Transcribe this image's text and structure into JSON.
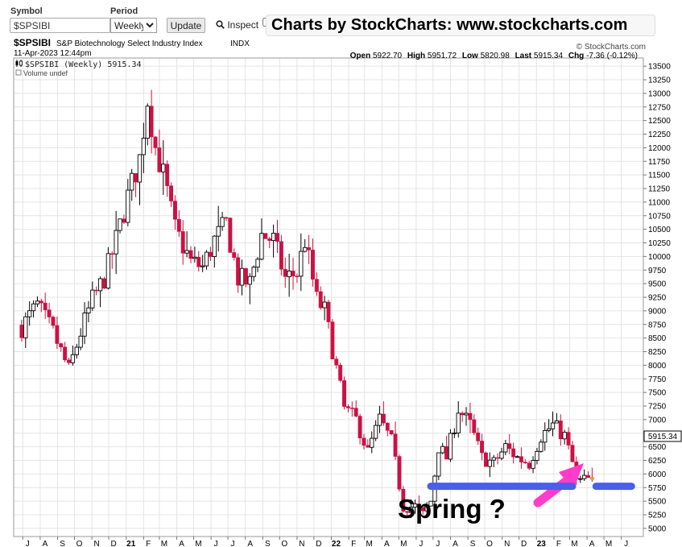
{
  "toolbar": {
    "symbol_label": "Symbol",
    "symbol_value": "$SPSIBI",
    "period_label": "Period",
    "period_value": "Weekly",
    "update_label": "Update",
    "inspect_label": "Inspect",
    "banner": "Charts by StockCharts:  www.stockcharts.com"
  },
  "header": {
    "ticker": "$SPSIBI",
    "name": "S&P Biotechnology Select Industry Index",
    "exchange": "INDX",
    "date": "11-Apr-2023 12:44pm",
    "copyright": "© StockCharts.com",
    "open_label": "Open",
    "open": "5922.70",
    "high_label": "High",
    "high": "5951.72",
    "low_label": "Low",
    "low": "5820.98",
    "last_label": "Last",
    "last": "5915.34",
    "chg_label": "Chg",
    "chg": "-7.36 (-0.12%)",
    "legend_series": "$SPSIBI (Weekly) 5915.34",
    "legend_volume": "Volume undef",
    "last_price_tag": "5915.34"
  },
  "annotations": {
    "text": "Spring ?",
    "colors": {
      "support_line": "#4a5ee8",
      "arrow": "#ff3cc8"
    },
    "support_level": 5775,
    "support_segments": [
      [
        "2022-06-27",
        "2023-03-06"
      ],
      [
        "2023-04-17",
        "2023-06-19"
      ]
    ]
  },
  "chart_data": {
    "type": "candlestick",
    "period": "weekly",
    "y_axis": {
      "side": "right",
      "min": 4850,
      "max": 13650,
      "ticks": [
        5000,
        5250,
        5500,
        5750,
        6000,
        6250,
        6500,
        6750,
        7000,
        7250,
        7500,
        7750,
        8000,
        8250,
        8500,
        8750,
        9000,
        9250,
        9500,
        9750,
        10000,
        10250,
        10500,
        10750,
        11000,
        11250,
        11500,
        11750,
        12000,
        12250,
        12500,
        12750,
        13000,
        13250,
        13500
      ]
    },
    "x_axis": {
      "labels": [
        "J",
        "A",
        "S",
        "O",
        "N",
        "D",
        "21",
        "F",
        "M",
        "A",
        "M",
        "J",
        "J",
        "A",
        "S",
        "O",
        "N",
        "D",
        "22",
        "F",
        "M",
        "A",
        "M",
        "J",
        "J",
        "A",
        "S",
        "O",
        "N",
        "D",
        "23",
        "F",
        "M",
        "A",
        "M",
        "J"
      ]
    },
    "colors": {
      "up": "#000000",
      "down": "#cc1144",
      "grid": "#e4e4e4"
    },
    "grid": true,
    "last_close": 5915.34,
    "price_path": [
      [
        "2020-06-29",
        8700
      ],
      [
        "2020-07-27",
        9100
      ],
      [
        "2020-08-24",
        8600
      ],
      [
        "2020-09-21",
        7900
      ],
      [
        "2020-10-12",
        8600
      ],
      [
        "2020-11-02",
        9200
      ],
      [
        "2020-11-23",
        9600
      ],
      [
        "2020-12-14",
        10300
      ],
      [
        "2021-01-04",
        11100
      ],
      [
        "2021-01-25",
        11800
      ],
      [
        "2021-02-08",
        12900
      ],
      [
        "2021-02-22",
        12000
      ],
      [
        "2021-03-08",
        11500
      ],
      [
        "2021-03-29",
        10500
      ],
      [
        "2021-04-26",
        9900
      ],
      [
        "2021-05-17",
        9800
      ],
      [
        "2021-06-07",
        10300
      ],
      [
        "2021-06-28",
        10600
      ],
      [
        "2021-07-19",
        9600
      ],
      [
        "2021-08-09",
        9500
      ],
      [
        "2021-08-30",
        10400
      ],
      [
        "2021-09-20",
        10300
      ],
      [
        "2021-10-11",
        9600
      ],
      [
        "2021-11-01",
        9700
      ],
      [
        "2021-11-15",
        10300
      ],
      [
        "2021-12-06",
        9200
      ],
      [
        "2021-12-20",
        9000
      ],
      [
        "2022-01-03",
        8300
      ],
      [
        "2022-01-24",
        7200
      ],
      [
        "2022-02-14",
        7000
      ],
      [
        "2022-03-07",
        6400
      ],
      [
        "2022-03-28",
        7000
      ],
      [
        "2022-04-18",
        6600
      ],
      [
        "2022-05-09",
        5400
      ],
      [
        "2022-05-30",
        5400
      ],
      [
        "2022-06-13",
        5250
      ],
      [
        "2022-06-27",
        5500
      ],
      [
        "2022-07-11",
        6500
      ],
      [
        "2022-07-25",
        6300
      ],
      [
        "2022-08-15",
        7200
      ],
      [
        "2022-09-05",
        6900
      ],
      [
        "2022-09-26",
        6300
      ],
      [
        "2022-10-17",
        6200
      ],
      [
        "2022-11-07",
        6500
      ],
      [
        "2022-11-28",
        6300
      ],
      [
        "2022-12-19",
        6200
      ],
      [
        "2023-01-09",
        6700
      ],
      [
        "2023-01-30",
        6900
      ],
      [
        "2023-02-20",
        6700
      ],
      [
        "2023-03-06",
        6200
      ],
      [
        "2023-03-13",
        5850
      ],
      [
        "2023-04-10",
        5915.34
      ]
    ]
  }
}
